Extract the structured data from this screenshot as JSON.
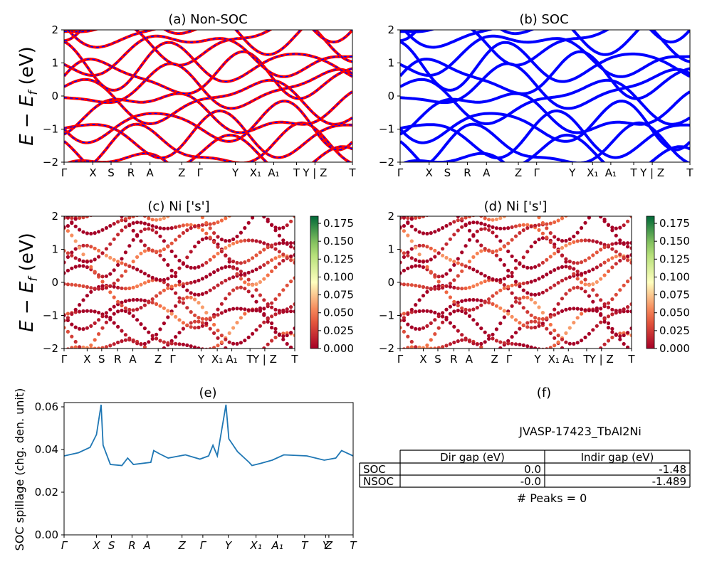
{
  "chart_data": [
    {
      "type": "line",
      "title": "(a) Non-SOC",
      "ylabel": "E − E_f (eV)",
      "ylim": [
        -2,
        2
      ],
      "yticks": [
        "2",
        "1",
        "0",
        "−1",
        "−2"
      ],
      "xticks": [
        "Γ",
        "X",
        "S",
        "R",
        "A",
        "Z",
        "Γ",
        "Y",
        "X₁",
        "A₁",
        "T",
        "Y | Z",
        "T"
      ],
      "series": [],
      "colors": {
        "bands": "#ff0000",
        "overlay": "#0000ff"
      }
    },
    {
      "type": "line",
      "title": "(b) SOC",
      "ylim": [
        -2,
        2
      ],
      "yticks": [
        "2",
        "1",
        "0",
        "−1",
        "−2"
      ],
      "xticks": [
        "Γ",
        "X",
        "S",
        "R",
        "A",
        "Z",
        "Γ",
        "Y",
        "X₁",
        "A₁",
        "T",
        "Y | Z",
        "T"
      ],
      "series": [],
      "colors": {
        "bands": "#0000ff"
      }
    },
    {
      "type": "scatter",
      "title": "(c)  Ni ['s']",
      "ylabel": "E − E_f (eV)",
      "ylim": [
        -2,
        2
      ],
      "yticks": [
        "2",
        "1",
        "0",
        "−1",
        "−2"
      ],
      "xticks": [
        "Γ",
        "X",
        "S",
        "R",
        "A",
        "Z",
        "Γ",
        "Y",
        "X₁",
        "A₁",
        "T",
        "Y | Z",
        "T"
      ],
      "colorbar": {
        "ticks": [
          "0.175",
          "0.150",
          "0.125",
          "0.100",
          "0.075",
          "0.050",
          "0.025",
          "0.000"
        ],
        "range": [
          0,
          0.185
        ]
      }
    },
    {
      "type": "scatter",
      "title": "(d) Ni ['s']",
      "ylim": [
        -2,
        2
      ],
      "yticks": [
        "2",
        "1",
        "0",
        "−1",
        "−2"
      ],
      "xticks": [
        "Γ",
        "X",
        "S",
        "R",
        "A",
        "Z",
        "Γ",
        "Y",
        "X₁",
        "A₁",
        "T",
        "Y | Z",
        "T"
      ],
      "colorbar": {
        "ticks": [
          "0.175",
          "0.150",
          "0.125",
          "0.100",
          "0.075",
          "0.050",
          "0.025",
          "0.000"
        ],
        "range": [
          0,
          0.185
        ]
      }
    },
    {
      "type": "line",
      "title": "(e)",
      "ylabel": "SOC spillage (chg. den. unit)",
      "ylim": [
        0,
        0.062
      ],
      "yticks": [
        "0.06",
        "0.04",
        "0.02",
        "0.00"
      ],
      "xticks": [
        "Γ",
        "X",
        "S",
        "R",
        "A",
        "Z",
        "Γ",
        "Y",
        "X₁",
        "A₁",
        "T",
        "Y",
        "Z",
        "T"
      ],
      "series": [],
      "color": "#1f77b4"
    },
    {
      "type": "table",
      "title": "(f)",
      "subtitle": "JVASP-17423_TbAl2Ni",
      "columns": [
        "Dir gap (eV)",
        "Indir gap (eV)"
      ],
      "rows": [
        {
          "label": "SOC",
          "values": [
            "0.0",
            "-1.48"
          ]
        },
        {
          "label": "NSOC",
          "values": [
            "-0.0",
            "-1.489"
          ]
        }
      ],
      "footer": "# Peaks = 0"
    }
  ]
}
